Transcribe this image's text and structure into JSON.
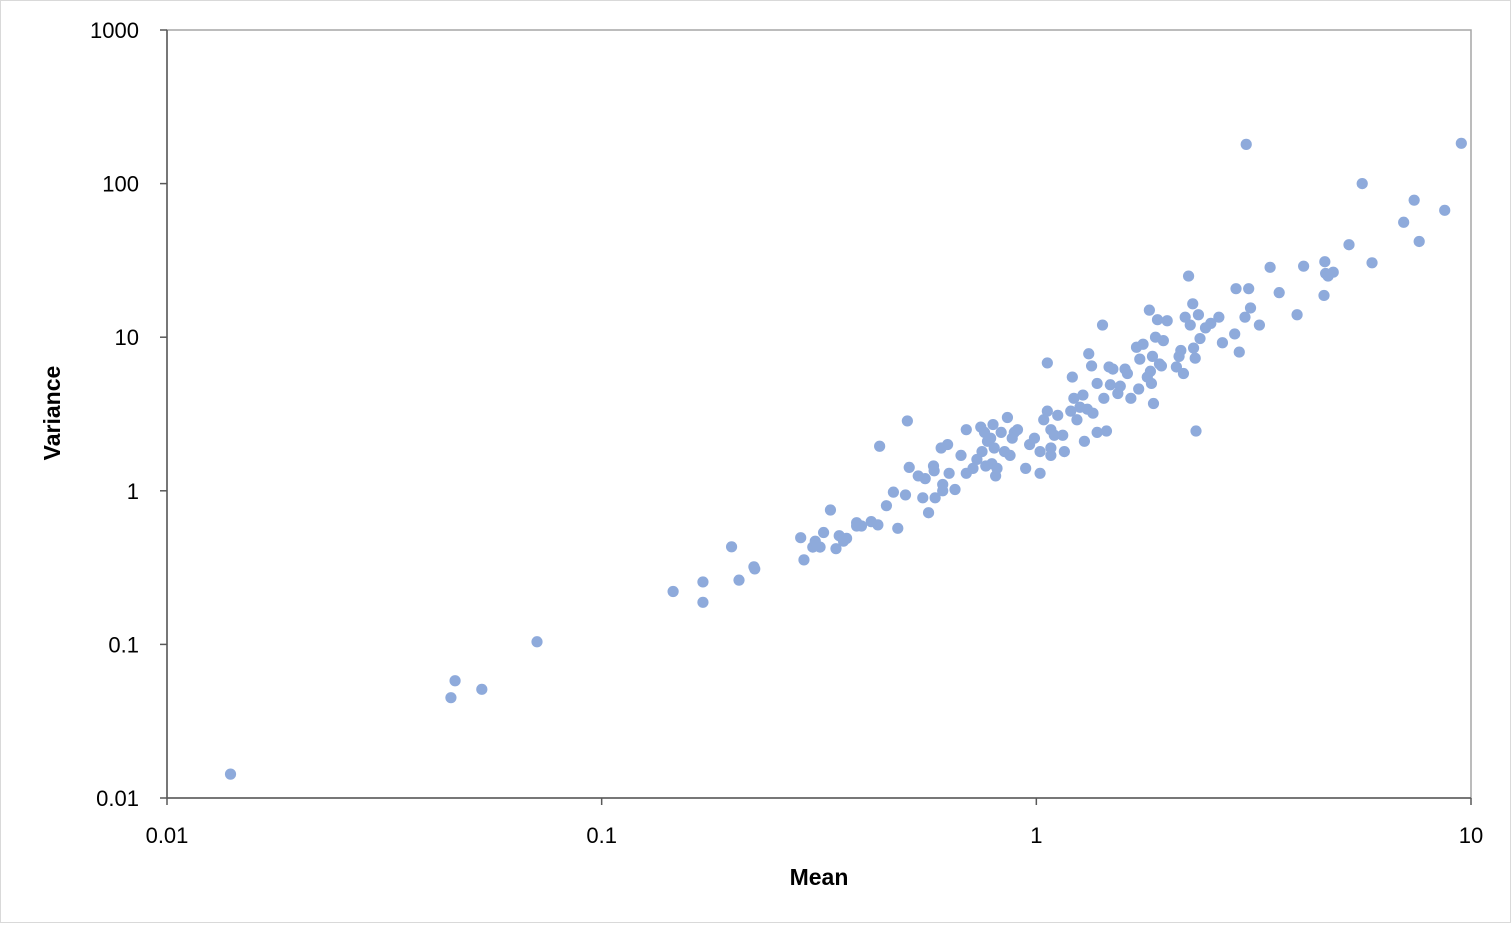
{
  "chart_data": {
    "type": "scatter",
    "title": "",
    "xlabel": "Mean",
    "ylabel": "Variance",
    "x_scale": "log",
    "y_scale": "log",
    "xlim": [
      0.01,
      10
    ],
    "ylim": [
      0.01,
      1000
    ],
    "x_ticks": [
      "0.01",
      "0.1",
      "1",
      "10"
    ],
    "y_ticks": [
      "0.01",
      "0.1",
      "1",
      "10",
      "100",
      "1000"
    ],
    "grid": false,
    "legend": "none",
    "marker_color": "#8eaadb",
    "series": [
      {
        "points": [
          [
            0.014,
            0.0143
          ],
          [
            0.045,
            0.045
          ],
          [
            0.046,
            0.058
          ],
          [
            0.053,
            0.051
          ],
          [
            0.071,
            0.104
          ],
          [
            0.146,
            0.221
          ],
          [
            0.171,
            0.255
          ],
          [
            0.171,
            0.188
          ],
          [
            0.199,
            0.432
          ],
          [
            0.207,
            0.262
          ],
          [
            0.224,
            0.32
          ],
          [
            0.225,
            0.31
          ],
          [
            0.287,
            0.495
          ],
          [
            0.292,
            0.355
          ],
          [
            0.306,
            0.43
          ],
          [
            0.31,
            0.47
          ],
          [
            0.318,
            0.43
          ],
          [
            0.324,
            0.535
          ],
          [
            0.336,
            0.75
          ],
          [
            0.346,
            0.42
          ],
          [
            0.352,
            0.51
          ],
          [
            0.36,
            0.47
          ],
          [
            0.366,
            0.49
          ],
          [
            0.386,
            0.62
          ],
          [
            0.386,
            0.59
          ],
          [
            0.396,
            0.59
          ],
          [
            0.417,
            0.63
          ],
          [
            0.432,
            0.6
          ],
          [
            0.436,
            1.95
          ],
          [
            0.452,
            0.8
          ],
          [
            0.469,
            0.98
          ],
          [
            0.48,
            0.57
          ],
          [
            0.5,
            0.94
          ],
          [
            0.505,
            2.85
          ],
          [
            0.51,
            1.42
          ],
          [
            0.535,
            1.25
          ],
          [
            0.548,
            0.9
          ],
          [
            0.555,
            1.2
          ],
          [
            0.565,
            0.72
          ],
          [
            0.58,
            1.45
          ],
          [
            0.582,
            1.35
          ],
          [
            0.585,
            0.9
          ],
          [
            0.604,
            1.9
          ],
          [
            0.609,
            1.1
          ],
          [
            0.609,
            1.0
          ],
          [
            0.625,
            2.0
          ],
          [
            0.63,
            1.3
          ],
          [
            0.65,
            1.02
          ],
          [
            0.671,
            1.7
          ],
          [
            0.69,
            2.5
          ],
          [
            0.69,
            1.3
          ],
          [
            0.715,
            1.4
          ],
          [
            0.73,
            1.6
          ],
          [
            0.745,
            2.6
          ],
          [
            0.75,
            1.8
          ],
          [
            0.76,
            2.4
          ],
          [
            0.765,
            1.45
          ],
          [
            0.772,
            2.1
          ],
          [
            0.785,
            2.2
          ],
          [
            0.79,
            1.5
          ],
          [
            0.795,
            2.7
          ],
          [
            0.8,
            1.9
          ],
          [
            0.806,
            1.25
          ],
          [
            0.812,
            1.4
          ],
          [
            0.83,
            2.4
          ],
          [
            0.845,
            1.8
          ],
          [
            0.858,
            3.0
          ],
          [
            0.87,
            1.7
          ],
          [
            0.88,
            2.2
          ],
          [
            0.89,
            2.4
          ],
          [
            0.905,
            2.5
          ],
          [
            0.945,
            1.4
          ],
          [
            0.965,
            2.0
          ],
          [
            0.99,
            2.2
          ],
          [
            1.02,
            1.3
          ],
          [
            1.02,
            1.8
          ],
          [
            1.04,
            2.9
          ],
          [
            1.06,
            6.8
          ],
          [
            1.06,
            3.3
          ],
          [
            1.08,
            1.7
          ],
          [
            1.08,
            2.5
          ],
          [
            1.08,
            1.9
          ],
          [
            1.1,
            2.3
          ],
          [
            1.12,
            3.1
          ],
          [
            1.15,
            2.3
          ],
          [
            1.16,
            1.8
          ],
          [
            1.2,
            3.3
          ],
          [
            1.21,
            5.5
          ],
          [
            1.22,
            4.0
          ],
          [
            1.24,
            2.9
          ],
          [
            1.26,
            3.5
          ],
          [
            1.28,
            4.2
          ],
          [
            1.29,
            2.1
          ],
          [
            1.31,
            3.4
          ],
          [
            1.32,
            7.8
          ],
          [
            1.34,
            6.5
          ],
          [
            1.35,
            3.2
          ],
          [
            1.38,
            5.0
          ],
          [
            1.38,
            2.4
          ],
          [
            1.42,
            12.0
          ],
          [
            1.43,
            4.0
          ],
          [
            1.45,
            2.45
          ],
          [
            1.47,
            6.4
          ],
          [
            1.48,
            4.9
          ],
          [
            1.5,
            6.2
          ],
          [
            1.54,
            4.3
          ],
          [
            1.56,
            4.8
          ],
          [
            1.6,
            6.2
          ],
          [
            1.62,
            5.8
          ],
          [
            1.65,
            4.0
          ],
          [
            1.7,
            8.6
          ],
          [
            1.72,
            4.6
          ],
          [
            1.73,
            7.2
          ],
          [
            1.76,
            9.0
          ],
          [
            1.8,
            5.5
          ],
          [
            1.82,
            15.0
          ],
          [
            1.83,
            6.0
          ],
          [
            1.84,
            5.0
          ],
          [
            1.85,
            7.5
          ],
          [
            1.86,
            3.7
          ],
          [
            1.88,
            10.0
          ],
          [
            1.9,
            13.0
          ],
          [
            1.92,
            6.7
          ],
          [
            1.94,
            6.5
          ],
          [
            1.96,
            9.5
          ],
          [
            2.0,
            12.8
          ],
          [
            2.1,
            6.4
          ],
          [
            2.13,
            7.5
          ],
          [
            2.15,
            8.2
          ],
          [
            2.18,
            5.8
          ],
          [
            2.2,
            13.5
          ],
          [
            2.24,
            25.0
          ],
          [
            2.26,
            12.0
          ],
          [
            2.29,
            16.5
          ],
          [
            2.3,
            8.5
          ],
          [
            2.32,
            7.3
          ],
          [
            2.33,
            2.45
          ],
          [
            2.36,
            14.0
          ],
          [
            2.38,
            9.8
          ],
          [
            2.45,
            11.5
          ],
          [
            2.52,
            12.3
          ],
          [
            2.63,
            13.5
          ],
          [
            2.68,
            9.2
          ],
          [
            2.86,
            10.5
          ],
          [
            2.88,
            20.7
          ],
          [
            2.93,
            8.0
          ],
          [
            3.02,
            13.5
          ],
          [
            3.04,
            180.0
          ],
          [
            3.08,
            20.7
          ],
          [
            3.11,
            15.5
          ],
          [
            3.26,
            12.0
          ],
          [
            3.45,
            28.5
          ],
          [
            3.62,
            19.5
          ],
          [
            3.98,
            14.0
          ],
          [
            4.12,
            29.0
          ],
          [
            4.59,
            18.7
          ],
          [
            4.61,
            31.0
          ],
          [
            4.63,
            26.0
          ],
          [
            4.69,
            25.0
          ],
          [
            4.82,
            26.5
          ],
          [
            5.24,
            40.0
          ],
          [
            5.62,
            100.0
          ],
          [
            5.92,
            30.5
          ],
          [
            7.0,
            56.0
          ],
          [
            7.4,
            78.0
          ],
          [
            7.6,
            42.0
          ],
          [
            8.7,
            67.0
          ],
          [
            9.5,
            183.0
          ]
        ]
      }
    ]
  }
}
